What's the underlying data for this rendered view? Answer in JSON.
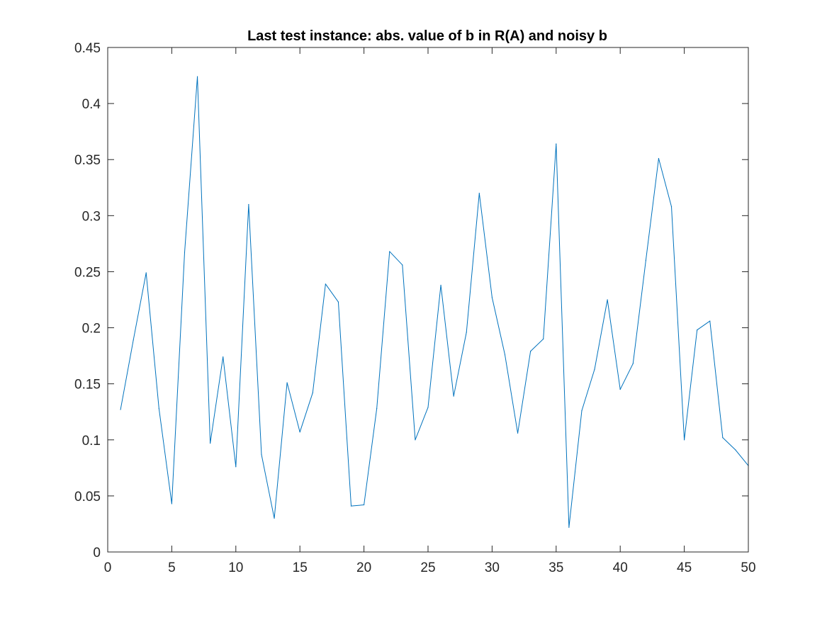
{
  "chart_data": {
    "type": "line",
    "title": "Last test instance: abs. value of b in R(A) and noisy b",
    "xlabel": "",
    "ylabel": "",
    "xlim": [
      0,
      50
    ],
    "ylim": [
      0,
      0.45
    ],
    "xticks": [
      0,
      5,
      10,
      15,
      20,
      25,
      30,
      35,
      40,
      45,
      50
    ],
    "xtick_labels": [
      "0",
      "5",
      "10",
      "15",
      "20",
      "25",
      "30",
      "35",
      "40",
      "45",
      "50"
    ],
    "yticks": [
      0,
      0.05,
      0.1,
      0.15,
      0.2,
      0.25,
      0.3,
      0.35,
      0.4,
      0.45
    ],
    "ytick_labels": [
      "0",
      "0.05",
      "0.1",
      "0.15",
      "0.2",
      "0.25",
      "0.3",
      "0.35",
      "0.4",
      "0.45"
    ],
    "grid": false,
    "legend": "none",
    "line_color": "#0072bd",
    "x": [
      1,
      2,
      3,
      4,
      5,
      6,
      7,
      8,
      9,
      10,
      11,
      12,
      13,
      14,
      15,
      16,
      17,
      18,
      19,
      20,
      21,
      22,
      23,
      24,
      25,
      26,
      27,
      28,
      29,
      30,
      31,
      32,
      33,
      34,
      35,
      36,
      37,
      38,
      39,
      40,
      41,
      42,
      43,
      44,
      45,
      46,
      47,
      48,
      49,
      50
    ],
    "y": [
      0.127,
      0.189,
      0.249,
      0.128,
      0.043,
      0.267,
      0.424,
      0.097,
      0.174,
      0.076,
      0.31,
      0.087,
      0.03,
      0.151,
      0.107,
      0.142,
      0.239,
      0.223,
      0.041,
      0.042,
      0.128,
      0.268,
      0.256,
      0.1,
      0.129,
      0.238,
      0.139,
      0.196,
      0.32,
      0.227,
      0.176,
      0.106,
      0.179,
      0.19,
      0.364,
      0.022,
      0.126,
      0.163,
      0.225,
      0.145,
      0.168,
      0.26,
      0.351,
      0.308,
      0.1,
      0.198,
      0.206,
      0.102,
      0.091,
      0.077
    ]
  }
}
